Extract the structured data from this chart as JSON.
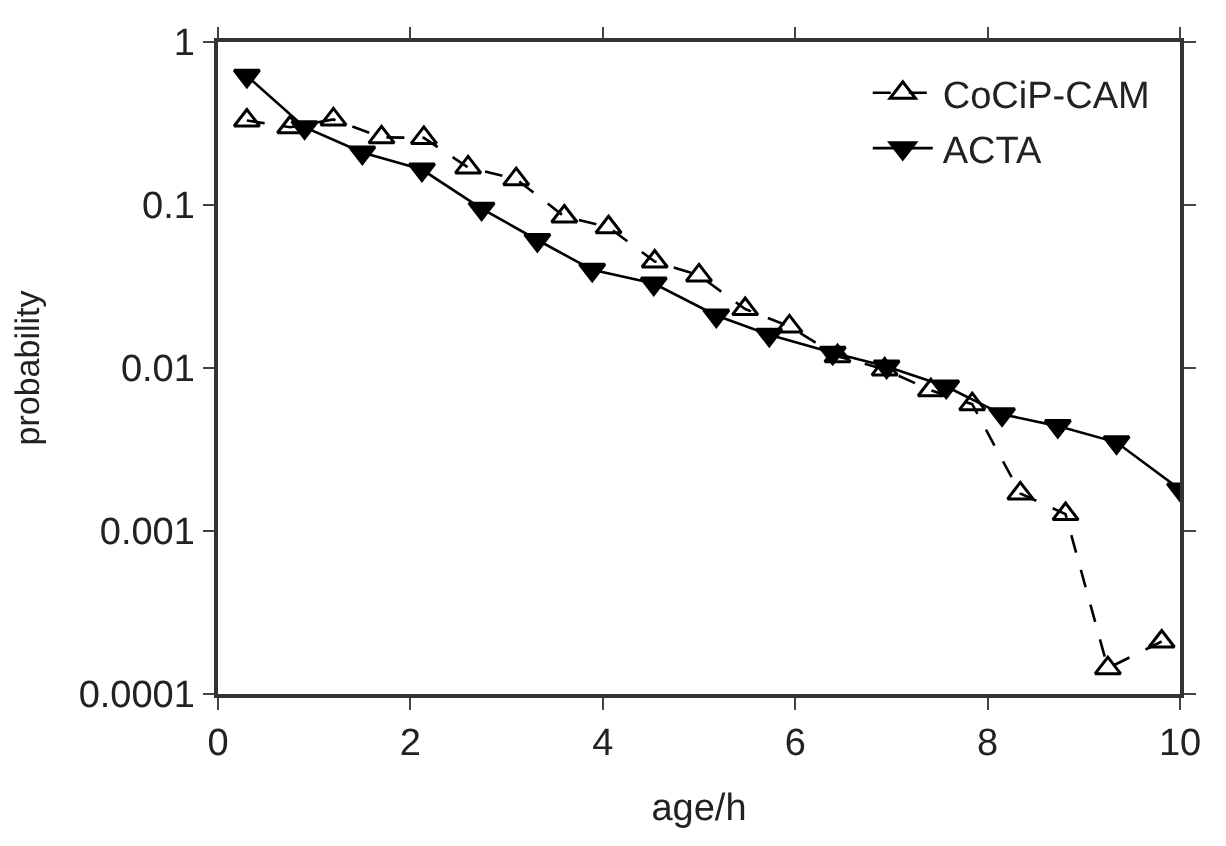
{
  "chart_data": {
    "type": "line",
    "xlabel": "age/h",
    "ylabel": "probability",
    "log": "y",
    "xlim": [
      0,
      10
    ],
    "xticks": [
      0,
      2,
      4,
      6,
      8,
      10
    ],
    "ylim": [
      0.0001,
      1
    ],
    "yticks": [
      0.0001,
      0.001,
      0.01,
      0.1,
      1
    ],
    "legend": "top right",
    "series": [
      {
        "name": "CoCiP-CAM",
        "color": "#000000",
        "marker": "triangle",
        "line_style": "dashed",
        "x": [
          0.3,
          0.75,
          1.2,
          1.7,
          2.14,
          2.6,
          3.1,
          3.6,
          4.06,
          4.54,
          5.0,
          5.48,
          5.94,
          6.44,
          6.93,
          7.41,
          7.84,
          8.34,
          8.81,
          9.25,
          9.81
        ],
        "values": [
          0.33,
          0.3,
          0.335,
          0.26,
          0.258,
          0.17,
          0.144,
          0.085,
          0.073,
          0.045,
          0.037,
          0.023,
          0.018,
          0.0118,
          0.0098,
          0.0073,
          0.006,
          0.0017,
          0.00127,
          0.000144,
          0.00021
        ]
      },
      {
        "name": "ACTA",
        "color": "#000000",
        "marker": "triangle-down",
        "line_style": "solid",
        "x": [
          0.3,
          0.9,
          1.5,
          2.12,
          2.74,
          3.32,
          3.89,
          4.53,
          5.18,
          5.73,
          6.39,
          6.95,
          7.57,
          8.15,
          8.73,
          9.34,
          10.0
        ],
        "values": [
          0.62,
          0.3,
          0.21,
          0.165,
          0.095,
          0.061,
          0.04,
          0.033,
          0.021,
          0.016,
          0.0124,
          0.0102,
          0.0077,
          0.0052,
          0.0044,
          0.0035,
          0.0018
        ]
      }
    ]
  }
}
